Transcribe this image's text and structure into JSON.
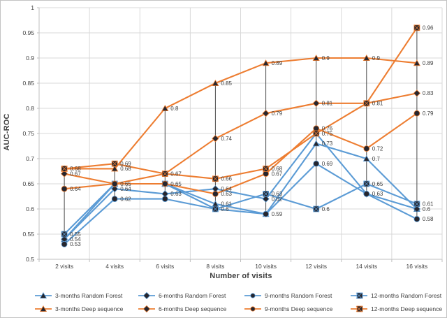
{
  "chart_data": {
    "type": "line",
    "title": "",
    "xlabel": "Number of visits",
    "ylabel": "AUC-ROC",
    "ylim": [
      0.5,
      1.0
    ],
    "ytick_step": 0.05,
    "ytick_labels": [
      "1",
      "0.95",
      "0.9",
      "0.85",
      "0.8",
      "0.75",
      "0.7",
      "0.65",
      "0.6",
      "0.55",
      "0.5"
    ],
    "grid": true,
    "high_low_lines": true,
    "legend_position": "bottom",
    "categories": [
      "2 visits",
      "4 visits",
      "6 visits",
      "8 visits",
      "10 visits",
      "12 visits",
      "14 visits",
      "16 visits"
    ],
    "colors": {
      "random_forest": "#5B9BD5",
      "deep_sequence": "#ED7D31",
      "marker": "#26262e",
      "label": "#404040",
      "gridline": "#D9D9D9",
      "axis": "#BFBFBF",
      "hilo_line": "#4a4a4a"
    },
    "series": [
      {
        "name": "3-months Random Forest",
        "color": "#5B9BD5",
        "marker": "triangle",
        "values": [
          0.54,
          0.65,
          0.65,
          0.61,
          0.59,
          0.73,
          0.7,
          0.6
        ],
        "labels": [
          "",
          "",
          "",
          "0.61",
          "",
          "0.73",
          "0.7",
          "0.6"
        ]
      },
      {
        "name": "6-months Random Forest",
        "color": "#5B9BD5",
        "marker": "diamond",
        "values": [
          0.54,
          0.64,
          0.63,
          0.64,
          0.62,
          0.75,
          0.63,
          0.6
        ],
        "labels": [
          "0.54",
          "0.64",
          "0.63",
          "0.64",
          "0.62",
          "",
          "",
          ""
        ]
      },
      {
        "name": "9-months Random Forest",
        "color": "#5B9BD5",
        "marker": "circle",
        "values": [
          0.53,
          0.62,
          0.62,
          0.6,
          0.59,
          0.69,
          0.63,
          0.58
        ],
        "labels": [
          "0.53",
          "0.62",
          "",
          "",
          "0.59",
          "0.69",
          "0.63",
          "0.58"
        ]
      },
      {
        "name": "12-months Random Forest",
        "color": "#5B9BD5",
        "marker": "xsquare",
        "values": [
          0.55,
          0.65,
          0.65,
          0.6,
          0.63,
          0.6,
          0.65,
          0.61
        ],
        "labels": [
          "0.55",
          "0.65",
          "0.65",
          "0.6",
          "0.63",
          "0.6",
          "0.65",
          "0.61"
        ]
      },
      {
        "name": "3-months Deep sequence",
        "color": "#ED7D31",
        "marker": "triangle",
        "values": [
          0.68,
          0.68,
          0.8,
          0.85,
          0.89,
          0.9,
          0.9,
          0.89
        ],
        "labels": [
          "",
          "0.68",
          "0.8",
          "0.85",
          "0.89",
          "0.9",
          "0.9",
          "0.89"
        ]
      },
      {
        "name": "6-months Deep sequence",
        "color": "#ED7D31",
        "marker": "diamond",
        "values": [
          0.67,
          0.65,
          0.67,
          0.74,
          0.79,
          0.81,
          0.81,
          0.83
        ],
        "labels": [
          "0.67",
          "",
          "",
          "0.74",
          "0.79",
          "0.81",
          "",
          "0.83"
        ]
      },
      {
        "name": "9-months Deep sequence",
        "color": "#ED7D31",
        "marker": "circle",
        "values": [
          0.64,
          0.65,
          0.65,
          0.63,
          0.67,
          0.76,
          0.72,
          0.79
        ],
        "labels": [
          "0.64",
          "",
          "",
          "0.63",
          "0.67",
          "0.76",
          "0.72",
          "0.79"
        ]
      },
      {
        "name": "12-months Deep sequence",
        "color": "#ED7D31",
        "marker": "xsquare",
        "values": [
          0.68,
          0.69,
          0.67,
          0.66,
          0.68,
          0.75,
          0.81,
          0.96
        ],
        "labels": [
          "0.68",
          "0.69",
          "0.67",
          "0.66",
          "0.68",
          "0.75",
          "0.81",
          "0.96"
        ]
      }
    ]
  }
}
